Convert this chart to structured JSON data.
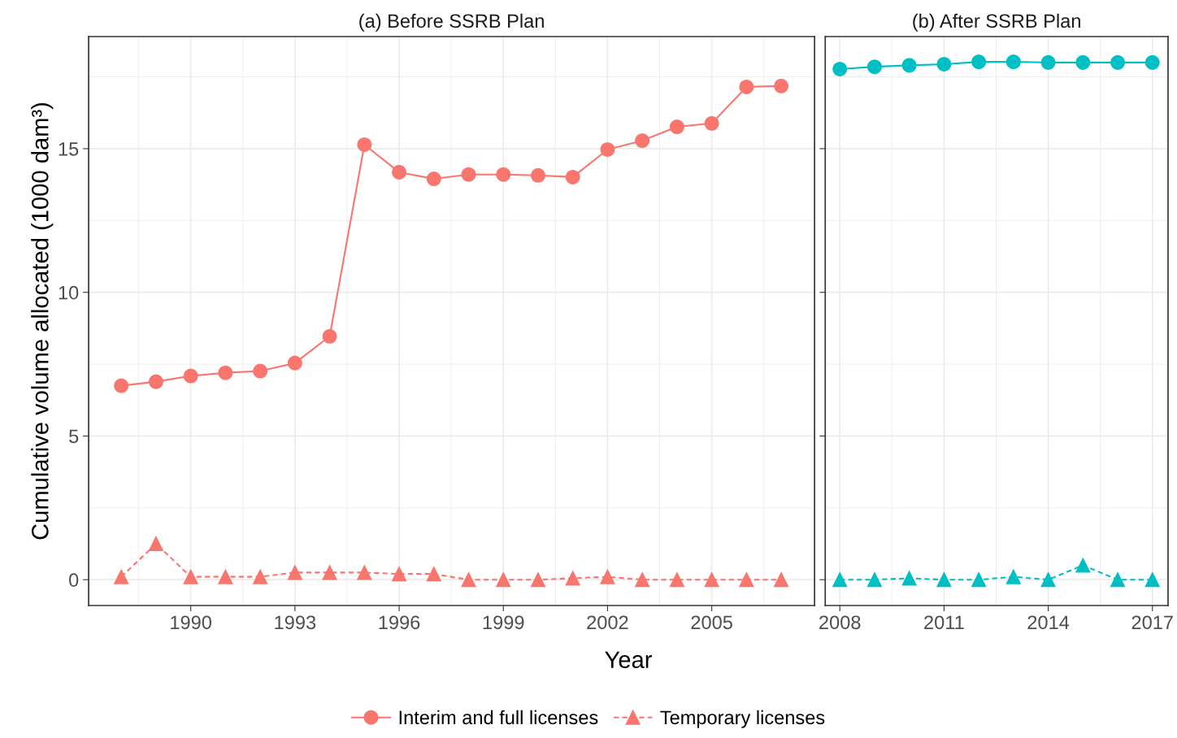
{
  "chart_data": [
    {
      "type": "line",
      "title": "(a) Before SSRB Plan",
      "xlabel": "Year",
      "ylabel": "Cumulative volume allocated (1000 dam³)",
      "legend": "bottom",
      "grid": true,
      "x": [
        1988,
        1989,
        1990,
        1991,
        1992,
        1993,
        1994,
        1995,
        1996,
        1997,
        1998,
        1999,
        2000,
        2001,
        2002,
        2003,
        2004,
        2005,
        2006,
        2007
      ],
      "xlim": [
        1987.06,
        2007.96
      ],
      "xticks": [
        1990,
        1993,
        1996,
        1999,
        2002,
        2005
      ],
      "ylim": [
        -0.9,
        18.9
      ],
      "yticks": [
        0,
        5,
        10,
        15
      ],
      "series": [
        {
          "name": "Interim and full licenses",
          "color": "#f8766d",
          "marker": "circle",
          "line_style": "solid",
          "values": [
            6.75,
            6.89,
            7.09,
            7.2,
            7.26,
            7.54,
            8.47,
            15.14,
            14.18,
            13.95,
            14.1,
            14.1,
            14.07,
            14.01,
            14.97,
            15.28,
            15.76,
            15.88,
            17.15,
            17.18
          ]
        },
        {
          "name": "Temporary licenses",
          "color": "#f8766d",
          "marker": "triangle",
          "line_style": "dashed",
          "values": [
            0.1,
            1.25,
            0.1,
            0.1,
            0.1,
            0.25,
            0.25,
            0.25,
            0.2,
            0.2,
            0.0,
            0.0,
            0.0,
            0.05,
            0.1,
            0.0,
            0.0,
            0.0,
            0.0,
            0.0
          ]
        }
      ]
    },
    {
      "type": "line",
      "title": "(b) After SSRB Plan",
      "grid": true,
      "tick_labels": "x",
      "x": [
        2008,
        2009,
        2010,
        2011,
        2012,
        2013,
        2014,
        2015,
        2016,
        2017
      ],
      "xlim": [
        2007.58,
        2017.45
      ],
      "xticks": [
        2008,
        2011,
        2014,
        2017
      ],
      "ylim": [
        -0.9,
        18.9
      ],
      "yticks": [
        0,
        5,
        10,
        15
      ],
      "series": [
        {
          "color": "#00bfc4",
          "marker": "circle",
          "line_style": "solid",
          "values": [
            17.77,
            17.85,
            17.9,
            17.94,
            18.02,
            18.02,
            18.0,
            18.0,
            18.0,
            18.0
          ]
        },
        {
          "color": "#00bfc4",
          "marker": "triangle",
          "line_style": "dashed",
          "values": [
            0.0,
            0.0,
            0.05,
            0.0,
            0.0,
            0.1,
            0.0,
            0.5,
            0.0,
            0.0
          ]
        }
      ]
    }
  ]
}
